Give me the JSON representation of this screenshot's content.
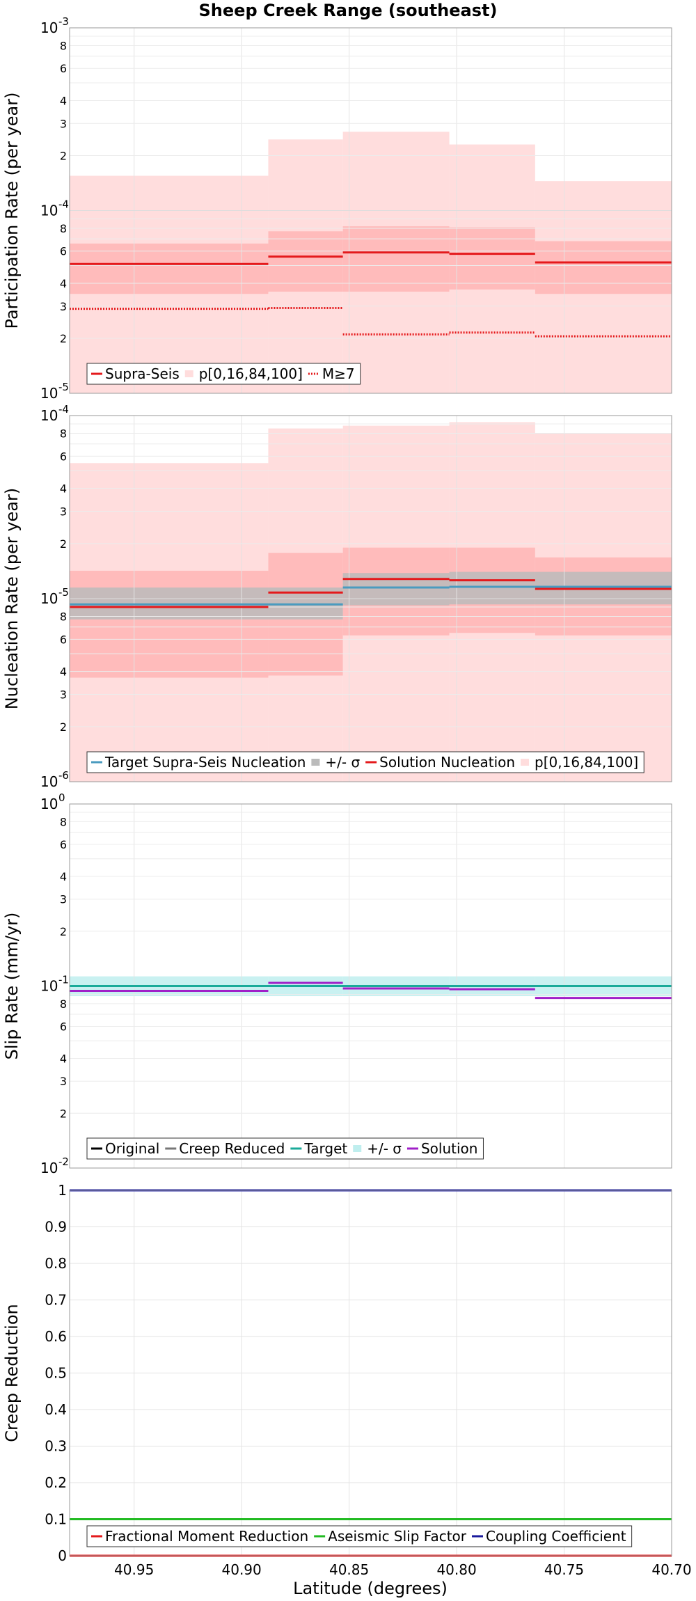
{
  "title": "Sheep Creek Range (southeast)",
  "xlabel": "Latitude (degrees)",
  "chart_data": [
    {
      "type": "line",
      "panel": "participation",
      "ylabel": "Participation Rate (per year)",
      "yscale": "log",
      "ylim": [
        1e-05,
        0.001
      ],
      "xlim": [
        40.98,
        40.7
      ],
      "x_ticks": [
        "40.95",
        "40.90",
        "40.85",
        "40.80",
        "40.75",
        "40.70"
      ],
      "y_major_ticks": [
        {
          "base": "10",
          "exp": "-5"
        },
        {
          "base": "10",
          "exp": "-4"
        },
        {
          "base": "10",
          "exp": "-3"
        }
      ],
      "y_minor_ticks": [
        "2",
        "3",
        "4",
        "6",
        "8"
      ],
      "sections": [
        [
          40.98,
          40.8876
        ],
        [
          40.8876,
          40.8529
        ],
        [
          40.8529,
          40.8034
        ],
        [
          40.8034,
          40.7635
        ],
        [
          40.7635,
          40.7
        ]
      ],
      "series": [
        {
          "name": "Supra-Seis",
          "style": "solid",
          "color": "#e41a1c",
          "values": [
            5.1e-05,
            5.6e-05,
            5.9e-05,
            5.8e-05,
            5.2e-05
          ]
        },
        {
          "name": "p[0,16,84,100]",
          "style": "band-outer",
          "color": "#ffdddd",
          "low": [
            1e-05,
            1e-05,
            1e-05,
            1e-05,
            1e-05
          ],
          "high": [
            0.000155,
            0.000245,
            0.00027,
            0.00023,
            0.000145
          ]
        },
        {
          "name": "p[0,16,84,100]",
          "style": "band-inner",
          "color": "#ffbbbb",
          "low": [
            3.5e-05,
            3.6e-05,
            3.6e-05,
            3.7e-05,
            3.5e-05
          ],
          "high": [
            6.6e-05,
            7.7e-05,
            8.2e-05,
            8.1e-05,
            6.8e-05
          ]
        },
        {
          "name": "M≥7",
          "style": "dotted",
          "color": "#e41a1c",
          "values": [
            2.9e-05,
            2.93e-05,
            2.1e-05,
            2.15e-05,
            2.05e-05
          ]
        }
      ],
      "legend": {
        "placement": "lower-left",
        "entries": [
          "Supra-Seis",
          "p[0,16,84,100]",
          "M≥7"
        ]
      }
    },
    {
      "type": "line",
      "panel": "nucleation",
      "ylabel": "Nucleation Rate (per year)",
      "yscale": "log",
      "ylim": [
        1e-06,
        0.0001
      ],
      "xlim": [
        40.98,
        40.7
      ],
      "x_ticks": [
        "40.95",
        "40.90",
        "40.85",
        "40.80",
        "40.75",
        "40.70"
      ],
      "y_major_ticks": [
        {
          "base": "10",
          "exp": "-6"
        },
        {
          "base": "10",
          "exp": "-5"
        },
        {
          "base": "10",
          "exp": "-4"
        }
      ],
      "y_minor_ticks": [
        "2",
        "3",
        "4",
        "6",
        "8"
      ],
      "sections": [
        [
          40.98,
          40.8876
        ],
        [
          40.8876,
          40.8529
        ],
        [
          40.8529,
          40.8034
        ],
        [
          40.8034,
          40.7635
        ],
        [
          40.7635,
          40.7
        ]
      ],
      "series": [
        {
          "name": "p[0,16,84,100]",
          "style": "band-outer",
          "color": "#ffdddd",
          "low": [
            1e-06,
            1e-06,
            1e-06,
            1e-06,
            1e-06
          ],
          "high": [
            5.5e-05,
            8.5e-05,
            8.8e-05,
            9.2e-05,
            8e-05
          ]
        },
        {
          "name": "p[0,16,84,100]",
          "style": "band-inner",
          "color": "#ffbbbb",
          "low": [
            3.7e-06,
            3.8e-06,
            6.3e-06,
            6.5e-06,
            6.3e-06
          ],
          "high": [
            1.42e-05,
            1.78e-05,
            1.9e-05,
            1.9e-05,
            1.68e-05
          ]
        },
        {
          "name": "+/- σ",
          "style": "band",
          "color": "#bbbbbb",
          "low": [
            7.7e-06,
            7.7e-06,
            9.2e-06,
            9.3e-06,
            9.3e-06
          ],
          "high": [
            1.15e-05,
            1.15e-05,
            1.38e-05,
            1.4e-05,
            1.4e-05
          ]
        },
        {
          "name": "Target Supra-Seis Nucleation",
          "style": "solid",
          "color": "#4a9bbf",
          "values": [
            9.3e-06,
            9.3e-06,
            1.15e-05,
            1.16e-05,
            1.16e-05
          ]
        },
        {
          "name": "Solution Nucleation",
          "style": "solid",
          "color": "#e41a1c",
          "values": [
            9e-06,
            1.08e-05,
            1.28e-05,
            1.26e-05,
            1.13e-05
          ]
        }
      ],
      "legend": {
        "placement": "lower-left",
        "entries": [
          "Target Supra-Seis Nucleation",
          "+/- σ",
          "Solution Nucleation",
          "p[0,16,84,100]"
        ]
      }
    },
    {
      "type": "line",
      "panel": "slip",
      "ylabel": "Slip Rate (mm/yr)",
      "yscale": "log",
      "ylim": [
        0.01,
        1
      ],
      "xlim": [
        40.98,
        40.7
      ],
      "x_ticks": [
        "40.95",
        "40.90",
        "40.85",
        "40.80",
        "40.75",
        "40.70"
      ],
      "y_major_ticks": [
        {
          "base": "10",
          "exp": "-2"
        },
        {
          "base": "10",
          "exp": "-1"
        },
        {
          "base": "10",
          "exp": "0"
        }
      ],
      "y_minor_ticks": [
        "2",
        "3",
        "4",
        "6",
        "8"
      ],
      "sections": [
        [
          40.98,
          40.8876
        ],
        [
          40.8876,
          40.8529
        ],
        [
          40.8529,
          40.8034
        ],
        [
          40.8034,
          40.7635
        ],
        [
          40.7635,
          40.7
        ]
      ],
      "series": [
        {
          "name": "+/- σ",
          "style": "band",
          "color": "#bfeeee",
          "low": [
            0.088,
            0.088,
            0.088,
            0.088,
            0.088
          ],
          "high": [
            0.113,
            0.113,
            0.113,
            0.113,
            0.113
          ]
        },
        {
          "name": "Original",
          "style": "solid",
          "color": "#000000",
          "values": [
            0.1,
            0.1,
            0.1,
            0.1,
            0.1
          ]
        },
        {
          "name": "Creep Reduced",
          "style": "solid",
          "color": "#777777",
          "values": [
            0.1,
            0.1,
            0.1,
            0.1,
            0.1
          ]
        },
        {
          "name": "Target",
          "style": "solid",
          "color": "#1aaa99",
          "values": [
            0.1,
            0.1,
            0.1,
            0.1,
            0.1
          ]
        },
        {
          "name": "Solution",
          "style": "solid",
          "color": "#a020c8",
          "values": [
            0.094,
            0.104,
            0.097,
            0.096,
            0.086
          ]
        }
      ],
      "legend": {
        "placement": "lower-left",
        "entries": [
          "Original",
          "Creep Reduced",
          "Target",
          "+/- σ",
          "Solution"
        ]
      }
    },
    {
      "type": "line",
      "panel": "creep",
      "ylabel": "Creep Reduction",
      "yscale": "linear",
      "ylim": [
        0,
        1
      ],
      "xlim": [
        40.98,
        40.7
      ],
      "x_ticks": [
        "40.95",
        "40.90",
        "40.85",
        "40.80",
        "40.75",
        "40.70"
      ],
      "y_ticks": [
        "0",
        "0.1",
        "0.2",
        "0.3",
        "0.4",
        "0.5",
        "0.6",
        "0.7",
        "0.8",
        "0.9",
        "1"
      ],
      "series": [
        {
          "name": "Fractional Moment Reduction",
          "style": "solid",
          "color": "#e41a1c",
          "values": [
            0,
            0
          ]
        },
        {
          "name": "Aseismic Slip Factor",
          "style": "solid",
          "color": "#22bb22",
          "values": [
            0.1,
            0.1
          ]
        },
        {
          "name": "Coupling Coefficient",
          "style": "solid",
          "color": "#1a1a9c",
          "values": [
            1,
            1
          ]
        }
      ],
      "legend": {
        "placement": "lower-left",
        "entries": [
          "Fractional Moment Reduction",
          "Aseismic Slip Factor",
          "Coupling Coefficient"
        ]
      }
    }
  ]
}
